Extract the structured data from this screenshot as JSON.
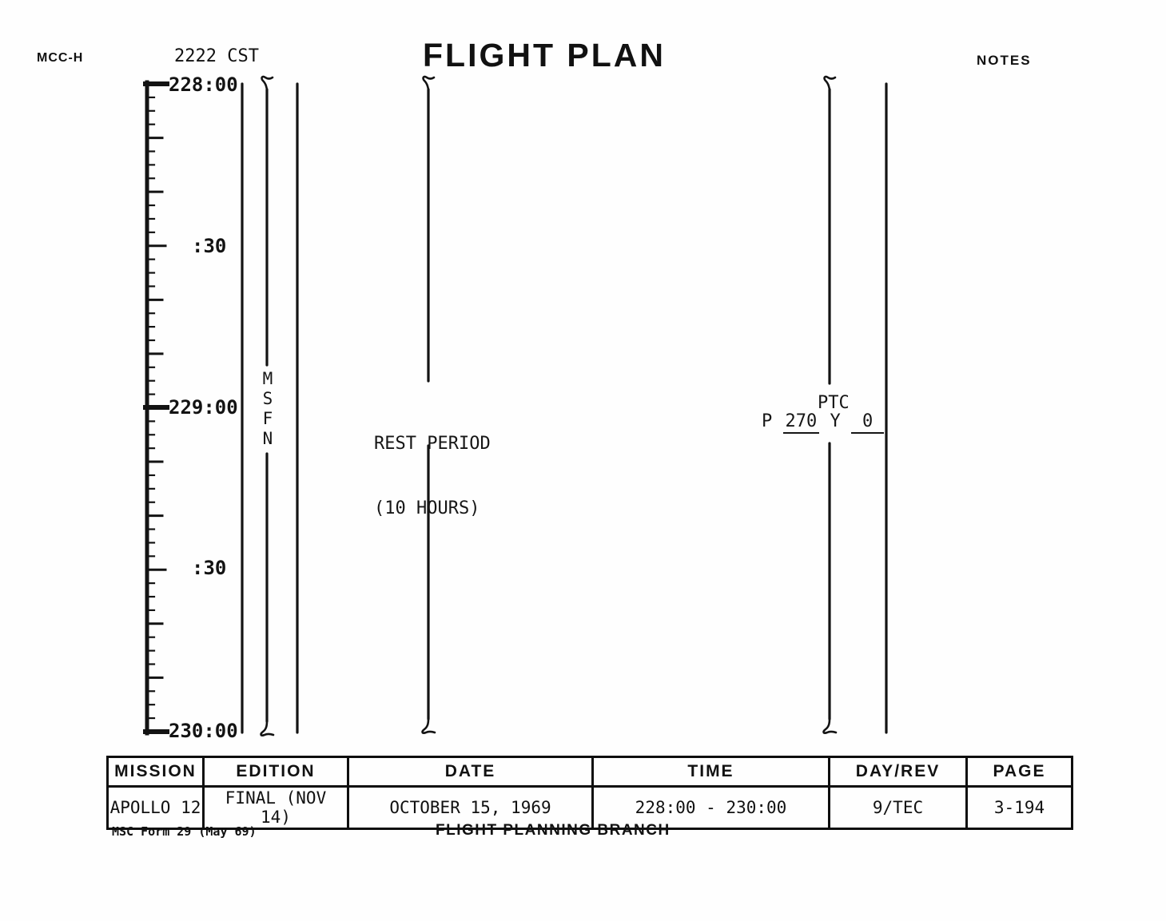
{
  "header": {
    "station": "MCC-H",
    "cst_time": "2222 CST",
    "title": "FLIGHT PLAN",
    "notes_label": "NOTES"
  },
  "timeline": {
    "start_minutes": 0,
    "duration_minutes": 120,
    "tick_minor_minutes": 2.5,
    "tick_medium_minutes": 10,
    "labels": [
      {
        "text": "228:00",
        "minutes": 0,
        "major": true
      },
      {
        "text": ":30",
        "minutes": 30,
        "major": false
      },
      {
        "text": "229:00",
        "minutes": 60,
        "major": true
      },
      {
        "text": ":30",
        "minutes": 90,
        "major": false
      },
      {
        "text": "230:00",
        "minutes": 120,
        "major": true
      }
    ],
    "msfn": "MSFN",
    "rest_period": {
      "line1": "REST PERIOD",
      "line2": "(10 HOURS)"
    },
    "ptc": {
      "label": "PTC",
      "p_label": "P ",
      "p_value": "270",
      "y_label": " Y ",
      "y_value": "0"
    }
  },
  "table": {
    "headers": [
      "MISSION",
      "EDITION",
      "DATE",
      "TIME",
      "DAY/REV",
      "PAGE"
    ],
    "values": [
      "APOLLO 12",
      "FINAL (NOV 14)",
      "OCTOBER 15, 1969",
      "228:00 - 230:00",
      "9/TEC",
      "3-194"
    ]
  },
  "footer": {
    "form_number": "MSC Form 29 (May 69)",
    "branch": "FLIGHT PLANNING BRANCH"
  },
  "colors": {
    "ink": "#131313",
    "paper": "#fefefe"
  }
}
